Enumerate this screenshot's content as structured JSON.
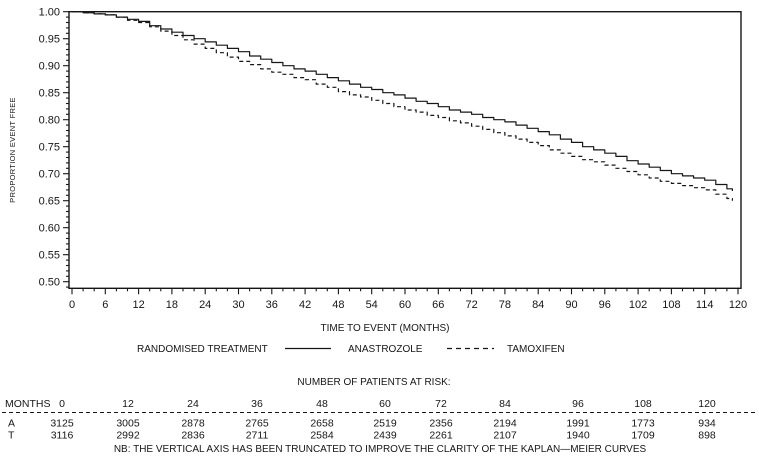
{
  "colors": {
    "ink": "#161616",
    "background": "#ffffff"
  },
  "chart_data": {
    "type": "line",
    "subtype": "kaplan-meier",
    "title": "",
    "ylabel": "PROPORTION EVENT FREE",
    "xlabel": "TIME TO EVENT (MONTHS)",
    "ylim": [
      0.488,
      1.0
    ],
    "xlim": [
      0,
      120
    ],
    "grid": false,
    "y_major_ticks": [
      "1.00",
      "0.95",
      "0.90",
      "0.85",
      "0.80",
      "0.75",
      "0.70",
      "0.65",
      "0.60",
      "0.55",
      "0.50"
    ],
    "y_minor_tick_step": 0.01,
    "x_major_ticks": [
      0,
      6,
      12,
      18,
      24,
      30,
      36,
      42,
      48,
      54,
      60,
      66,
      72,
      78,
      84,
      90,
      96,
      102,
      108,
      114,
      120
    ],
    "x_minor_tick_step": 2,
    "legend": {
      "position": "below-x-axis",
      "title": "RANDOMISED TREATMENT",
      "entries": [
        {
          "label": "ANASTROZOLE",
          "line_style": "solid"
        },
        {
          "label": "TAMOXIFEN",
          "line_style": "dashed"
        }
      ]
    },
    "series": [
      {
        "name": "ANASTROZOLE",
        "line_style": "solid",
        "x": [
          0,
          6,
          12,
          18,
          24,
          30,
          36,
          42,
          48,
          54,
          60,
          66,
          72,
          78,
          84,
          90,
          96,
          102,
          108,
          114,
          119
        ],
        "y": [
          1.0,
          0.994,
          0.981,
          0.962,
          0.944,
          0.925,
          0.905,
          0.889,
          0.871,
          0.855,
          0.84,
          0.824,
          0.809,
          0.795,
          0.778,
          0.757,
          0.738,
          0.718,
          0.7,
          0.688,
          0.667
        ]
      },
      {
        "name": "TAMOXIFEN",
        "line_style": "dashed",
        "x": [
          0,
          6,
          12,
          18,
          24,
          30,
          36,
          42,
          48,
          54,
          60,
          66,
          72,
          78,
          84,
          90,
          96,
          102,
          108,
          114,
          119
        ],
        "y": [
          1.0,
          0.994,
          0.979,
          0.957,
          0.932,
          0.908,
          0.888,
          0.873,
          0.852,
          0.836,
          0.819,
          0.803,
          0.788,
          0.77,
          0.751,
          0.732,
          0.716,
          0.698,
          0.681,
          0.669,
          0.649
        ]
      }
    ]
  },
  "risk_table": {
    "title": "NUMBER OF PATIENTS AT RISK:",
    "months_label": "MONTHS",
    "months": [
      "0",
      "12",
      "24",
      "36",
      "48",
      "60",
      "72",
      "84",
      "96",
      "108",
      "120"
    ],
    "rows": [
      {
        "label": "A",
        "values": [
          "3125",
          "3005",
          "2878",
          "2765",
          "2658",
          "2519",
          "2356",
          "2194",
          "1991",
          "1773",
          "934"
        ]
      },
      {
        "label": "T",
        "values": [
          "3116",
          "2992",
          "2836",
          "2711",
          "2584",
          "2439",
          "2261",
          "2107",
          "1940",
          "1709",
          "898"
        ]
      }
    ],
    "note": "NB:  THE VERTICAL AXIS HAS BEEN TRUNCATED TO IMPROVE THE CLARITY OF THE KAPLAN—MEIER CURVES"
  }
}
